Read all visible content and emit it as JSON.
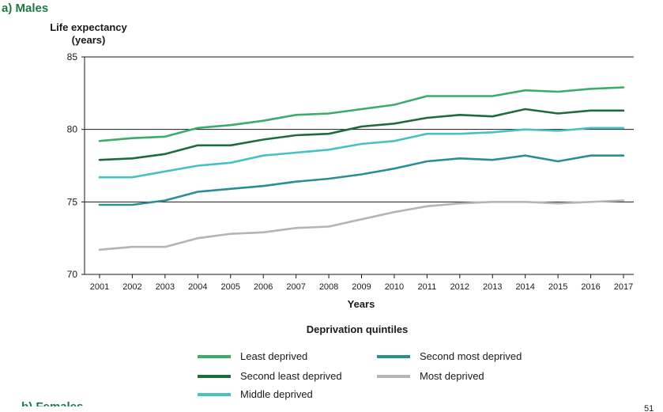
{
  "panel_title": "a) Males",
  "next_panel_title": "b) Females",
  "page_number": "51",
  "chart_data": {
    "type": "line",
    "title": "a) Males",
    "ylabel_line1": "Life expectancy",
    "ylabel_line2": "(years)",
    "xlabel": "Years",
    "ylim": [
      70,
      85
    ],
    "yticks": [
      70,
      75,
      80,
      85
    ],
    "categories": [
      "2001",
      "2002",
      "2003",
      "2004",
      "2005",
      "2006",
      "2007",
      "2008",
      "2009",
      "2010",
      "2011",
      "2012",
      "2013",
      "2014",
      "2015",
      "2016",
      "2017"
    ],
    "gridlines": [
      75,
      80,
      85
    ],
    "legend_title": "Deprivation quintiles",
    "series": [
      {
        "name": "Least deprived",
        "color": "#3aad6a",
        "values": [
          79.2,
          79.4,
          79.5,
          80.1,
          80.3,
          80.6,
          81.0,
          81.1,
          81.4,
          81.7,
          82.3,
          82.3,
          82.3,
          82.7,
          82.6,
          82.8,
          82.9
        ]
      },
      {
        "name": "Second least deprived",
        "color": "#1e6b3c",
        "values": [
          77.9,
          78.0,
          78.3,
          78.9,
          78.9,
          79.3,
          79.6,
          79.7,
          80.2,
          80.4,
          80.8,
          81.0,
          80.9,
          81.4,
          81.1,
          81.3,
          81.3
        ]
      },
      {
        "name": "Middle deprived",
        "color": "#48c1c5",
        "values": [
          76.7,
          76.7,
          77.1,
          77.5,
          77.7,
          78.2,
          78.4,
          78.6,
          79.0,
          79.2,
          79.7,
          79.7,
          79.8,
          80.0,
          79.9,
          80.1,
          80.1
        ]
      },
      {
        "name": "Second most deprived",
        "color": "#2a8e96",
        "values": [
          74.8,
          74.8,
          75.1,
          75.7,
          75.9,
          76.1,
          76.4,
          76.6,
          76.9,
          77.3,
          77.8,
          78.0,
          77.9,
          78.2,
          77.8,
          78.2,
          78.2
        ]
      },
      {
        "name": "Most deprived",
        "color": "#b5b5b5",
        "values": [
          71.7,
          71.9,
          71.9,
          72.5,
          72.8,
          72.9,
          73.2,
          73.3,
          73.8,
          74.3,
          74.7,
          74.9,
          75.0,
          75.0,
          74.9,
          75.0,
          75.1
        ]
      }
    ]
  }
}
